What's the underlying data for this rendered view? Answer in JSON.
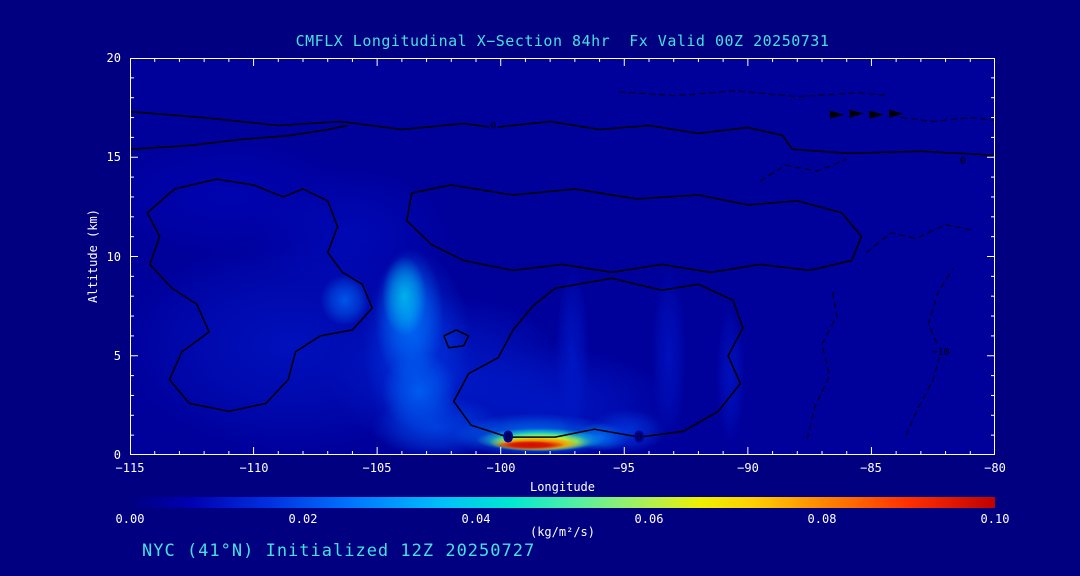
{
  "colors": {
    "background": "#000080",
    "accent_text": "#45e0e0",
    "axis_text": "#ffffff",
    "contour": "#000000"
  },
  "title": {
    "text": "CMFLX Longitudinal X−Section 84hr  Fx Valid 00Z 20250731"
  },
  "footer": {
    "text": "NYC (41°N) Initialized 12Z 20250727"
  },
  "axes": {
    "x": {
      "label": "Longitude",
      "major_ticks": [
        -115,
        -110,
        -105,
        -100,
        -95,
        -90,
        -85,
        -80
      ],
      "tick_labels": [
        "−115",
        "−110",
        "−105",
        "−100",
        "−95",
        "−90",
        "−85",
        "−80"
      ],
      "minor_step": 1
    },
    "y": {
      "label": "Altitude (km)",
      "major_ticks": [
        0,
        5,
        10,
        15,
        20
      ],
      "tick_labels": [
        "0",
        "5",
        "10",
        "15",
        "20"
      ],
      "minor_step": 1
    }
  },
  "colorbar": {
    "unit": "(kg/m²/s)",
    "min": 0,
    "max": 0.1,
    "tick_labels": [
      "0.00",
      "0.02",
      "0.04",
      "0.06",
      "0.08",
      "0.10"
    ],
    "stops": [
      [
        0,
        "#000080"
      ],
      [
        0.07,
        "#0000b0"
      ],
      [
        0.16,
        "#0030e0"
      ],
      [
        0.26,
        "#0078ff"
      ],
      [
        0.36,
        "#00c0f8"
      ],
      [
        0.44,
        "#00e8d0"
      ],
      [
        0.52,
        "#58f0a0"
      ],
      [
        0.6,
        "#b0f050"
      ],
      [
        0.66,
        "#eef000"
      ],
      [
        0.72,
        "#ffd000"
      ],
      [
        0.8,
        "#ff8800"
      ],
      [
        0.9,
        "#ff3000"
      ],
      [
        1,
        "#c00000"
      ]
    ]
  },
  "chart_data": {
    "type": "heatmap",
    "field": "CMFLX longitudinal cross-section, filled values with overlaid contour lines",
    "units": "kg/m²/s",
    "xlabel": "Longitude",
    "ylabel": "Altitude (km)",
    "xlim": [
      -115,
      -80
    ],
    "ylim": [
      0,
      20
    ],
    "value_range": [
      0,
      0.1
    ],
    "background_value": 0.004,
    "blobs": [
      {
        "lon": -108.5,
        "alt": 5.5,
        "rx": 7,
        "ry": 5.5,
        "v": 0.011
      },
      {
        "lon": -102,
        "alt": 4,
        "rx": 5,
        "ry": 4,
        "v": 0.013
      },
      {
        "lon": -98,
        "alt": 2.5,
        "rx": 5,
        "ry": 3,
        "v": 0.012
      },
      {
        "lon": -106,
        "alt": 11,
        "rx": 4,
        "ry": 3.5,
        "v": 0.009
      },
      {
        "lon": -111,
        "alt": 13,
        "rx": 5,
        "ry": 3,
        "v": 0.008
      },
      {
        "lon": -103.4,
        "alt": 5.5,
        "rx": 2.2,
        "ry": 4.8,
        "v": 0.018
      },
      {
        "lon": -103.7,
        "alt": 7,
        "rx": 1.4,
        "ry": 3.4,
        "v": 0.027
      },
      {
        "lon": -103.9,
        "alt": 8,
        "rx": 0.9,
        "ry": 2.0,
        "v": 0.038
      },
      {
        "lon": -103.3,
        "alt": 3.2,
        "rx": 1.5,
        "ry": 2.0,
        "v": 0.024
      },
      {
        "lon": -106.3,
        "alt": 7.8,
        "rx": 1.0,
        "ry": 1.3,
        "v": 0.024
      },
      {
        "lon": -102.6,
        "alt": 1.4,
        "rx": 2.6,
        "ry": 1.6,
        "v": 0.02
      },
      {
        "lon": -98.6,
        "alt": 1.0,
        "rx": 3.4,
        "ry": 1.1,
        "v": 0.028
      },
      {
        "lon": -98.4,
        "alt": 0.75,
        "rx": 2.6,
        "ry": 0.6,
        "v": 0.048,
        "sharp": true
      },
      {
        "lon": -98.4,
        "alt": 0.65,
        "rx": 2.1,
        "ry": 0.45,
        "v": 0.065,
        "sharp": true
      },
      {
        "lon": -98.6,
        "alt": 0.55,
        "rx": 1.8,
        "ry": 0.33,
        "v": 0.082,
        "sharp": true
      },
      {
        "lon": -98.8,
        "alt": 0.5,
        "rx": 1.4,
        "ry": 0.22,
        "v": 0.098,
        "sharp": true
      },
      {
        "lon": -95.9,
        "alt": 0.9,
        "rx": 1.1,
        "ry": 0.7,
        "v": 0.03
      },
      {
        "lon": -94.9,
        "alt": 1.2,
        "rx": 1.6,
        "ry": 1.1,
        "v": 0.018
      },
      {
        "lon": -97.1,
        "alt": 5,
        "rx": 0.7,
        "ry": 4.5,
        "v": 0.012
      },
      {
        "lon": -93.2,
        "alt": 5,
        "rx": 0.7,
        "ry": 4.5,
        "v": 0.011
      },
      {
        "lon": -90.7,
        "alt": 4,
        "rx": 0.6,
        "ry": 3.5,
        "v": 0.011
      }
    ],
    "contours": [
      {
        "level": "0",
        "style": "solid",
        "closed": false,
        "points": [
          [
            -115,
            17.3
          ],
          [
            -112,
            17.0
          ],
          [
            -109,
            16.6
          ],
          [
            -106.5,
            16.8
          ],
          [
            -104,
            16.4
          ],
          [
            -101.5,
            16.7
          ],
          [
            -100.3,
            16.5
          ],
          [
            -98,
            16.8
          ],
          [
            -96,
            16.4
          ],
          [
            -94,
            16.6
          ],
          [
            -92,
            16.2
          ],
          [
            -90,
            16.5
          ],
          [
            -88.6,
            16.1
          ],
          [
            -88.2,
            15.4
          ],
          [
            -86,
            15.2
          ],
          [
            -83,
            15.3
          ],
          [
            -80,
            15.1
          ]
        ],
        "labels": [
          {
            "text": "0",
            "lon": -100.3,
            "alt": 16.6
          },
          {
            "text": "0",
            "lon": -81.3,
            "alt": 14.8
          }
        ]
      },
      {
        "level": "0",
        "style": "solid",
        "closed": false,
        "points": [
          [
            -115,
            15.4
          ],
          [
            -112.5,
            15.6
          ],
          [
            -110.5,
            15.9
          ],
          [
            -108.5,
            16.1
          ],
          [
            -107,
            16.4
          ],
          [
            -106.2,
            16.6
          ]
        ],
        "labels": []
      },
      {
        "level": "0",
        "style": "solid",
        "closed": true,
        "points": [
          [
            -113.2,
            13.4
          ],
          [
            -111.5,
            13.9
          ],
          [
            -110,
            13.6
          ],
          [
            -108.8,
            13.0
          ],
          [
            -108,
            13.4
          ],
          [
            -107,
            12.8
          ],
          [
            -106.6,
            11.5
          ],
          [
            -107,
            10.2
          ],
          [
            -106.4,
            9.2
          ],
          [
            -105.6,
            8.6
          ],
          [
            -105.2,
            7.4
          ],
          [
            -106,
            6.3
          ],
          [
            -107.3,
            6.0
          ],
          [
            -108.3,
            5.2
          ],
          [
            -108.6,
            3.8
          ],
          [
            -109.5,
            2.6
          ],
          [
            -111,
            2.2
          ],
          [
            -112.6,
            2.6
          ],
          [
            -113.4,
            3.8
          ],
          [
            -112.9,
            5.2
          ],
          [
            -111.8,
            6.2
          ],
          [
            -112.3,
            7.6
          ],
          [
            -113.3,
            8.4
          ],
          [
            -114.2,
            9.6
          ],
          [
            -113.8,
            11.0
          ],
          [
            -114.3,
            12.2
          ]
        ],
        "labels": []
      },
      {
        "level": "0",
        "style": "solid",
        "closed": true,
        "points": [
          [
            -103.6,
            13.2
          ],
          [
            -102,
            13.6
          ],
          [
            -99.5,
            13.1
          ],
          [
            -97,
            13.4
          ],
          [
            -94.5,
            12.9
          ],
          [
            -92,
            13.1
          ],
          [
            -90,
            12.6
          ],
          [
            -88,
            12.8
          ],
          [
            -86.2,
            12.2
          ],
          [
            -85.4,
            11.0
          ],
          [
            -85.8,
            9.8
          ],
          [
            -87.5,
            9.3
          ],
          [
            -89.5,
            9.6
          ],
          [
            -91.5,
            9.2
          ],
          [
            -93.5,
            9.6
          ],
          [
            -95.5,
            9.2
          ],
          [
            -97.5,
            9.6
          ],
          [
            -99.5,
            9.3
          ],
          [
            -101.5,
            9.8
          ],
          [
            -102.8,
            10.6
          ],
          [
            -103.8,
            11.8
          ]
        ],
        "labels": []
      },
      {
        "level": "0",
        "style": "solid",
        "closed": true,
        "points": [
          [
            -97.8,
            8.4
          ],
          [
            -95.5,
            8.9
          ],
          [
            -93.5,
            8.3
          ],
          [
            -92,
            8.6
          ],
          [
            -90.6,
            7.8
          ],
          [
            -90.2,
            6.4
          ],
          [
            -90.8,
            5.0
          ],
          [
            -90.3,
            3.6
          ],
          [
            -91.2,
            2.2
          ],
          [
            -92.6,
            1.2
          ],
          [
            -94.4,
            0.9
          ],
          [
            -96.2,
            1.3
          ],
          [
            -97.8,
            0.9
          ],
          [
            -99.7,
            0.9
          ],
          [
            -101.2,
            1.5
          ],
          [
            -101.9,
            2.7
          ],
          [
            -101.3,
            4.1
          ],
          [
            -100.1,
            4.9
          ],
          [
            -99.5,
            6.3
          ],
          [
            -98.7,
            7.5
          ]
        ],
        "labels": [
          {
            "text": "0",
            "lon": -99.7,
            "alt": 0.9
          },
          {
            "text": "0",
            "lon": -94.4,
            "alt": 0.9
          }
        ]
      },
      {
        "level": "0",
        "style": "solid",
        "closed": true,
        "points": [
          [
            -102.3,
            6.0
          ],
          [
            -101.8,
            6.3
          ],
          [
            -101.3,
            6.0
          ],
          [
            -101.5,
            5.5
          ],
          [
            -102.1,
            5.4
          ]
        ],
        "labels": []
      },
      {
        "level": "-5",
        "style": "dashed",
        "closed": false,
        "points": [
          [
            -95.2,
            18.3
          ],
          [
            -93,
            18.1
          ],
          [
            -90.5,
            18.35
          ],
          [
            -88,
            18.05
          ],
          [
            -85.5,
            18.25
          ],
          [
            -84.3,
            18.1
          ]
        ],
        "labels": []
      },
      {
        "level": "-5",
        "style": "dashed",
        "closed": false,
        "points": [
          [
            -83.8,
            17.0
          ],
          [
            -82.5,
            16.8
          ],
          [
            -81,
            17.0
          ],
          [
            -80,
            16.85
          ]
        ],
        "labels": []
      },
      {
        "level": "-10",
        "style": "dashed",
        "closed": false,
        "points": [
          [
            -83.6,
            1.0
          ],
          [
            -83.1,
            2.4
          ],
          [
            -82.5,
            3.8
          ],
          [
            -82.2,
            5.2
          ],
          [
            -82.7,
            6.6
          ],
          [
            -82.3,
            8.2
          ],
          [
            -81.7,
            9.4
          ]
        ],
        "labels": [
          {
            "text": "−10",
            "lon": -82.2,
            "alt": 5.2
          }
        ]
      },
      {
        "level": "-5",
        "style": "dashed",
        "closed": false,
        "points": [
          [
            -87.6,
            0.8
          ],
          [
            -87.3,
            2.4
          ],
          [
            -86.7,
            4.0
          ],
          [
            -87.0,
            5.6
          ],
          [
            -86.4,
            7.0
          ],
          [
            -86.6,
            8.4
          ]
        ],
        "labels": []
      },
      {
        "level": "-5",
        "style": "dashed",
        "closed": false,
        "points": [
          [
            -85.2,
            10.2
          ],
          [
            -84.2,
            11.2
          ],
          [
            -83.2,
            10.9
          ],
          [
            -82.0,
            11.6
          ],
          [
            -80.8,
            11.3
          ]
        ],
        "labels": []
      },
      {
        "level": "-5",
        "style": "dashed",
        "closed": false,
        "points": [
          [
            -89.5,
            13.8
          ],
          [
            -88.5,
            14.6
          ],
          [
            -87.2,
            14.3
          ],
          [
            -86.0,
            14.9
          ]
        ],
        "labels": []
      }
    ],
    "marks": [
      {
        "lon": -86.4,
        "alt": 17.15
      },
      {
        "lon": -85.6,
        "alt": 17.2
      },
      {
        "lon": -84.8,
        "alt": 17.15
      },
      {
        "lon": -84.0,
        "alt": 17.2
      }
    ]
  }
}
